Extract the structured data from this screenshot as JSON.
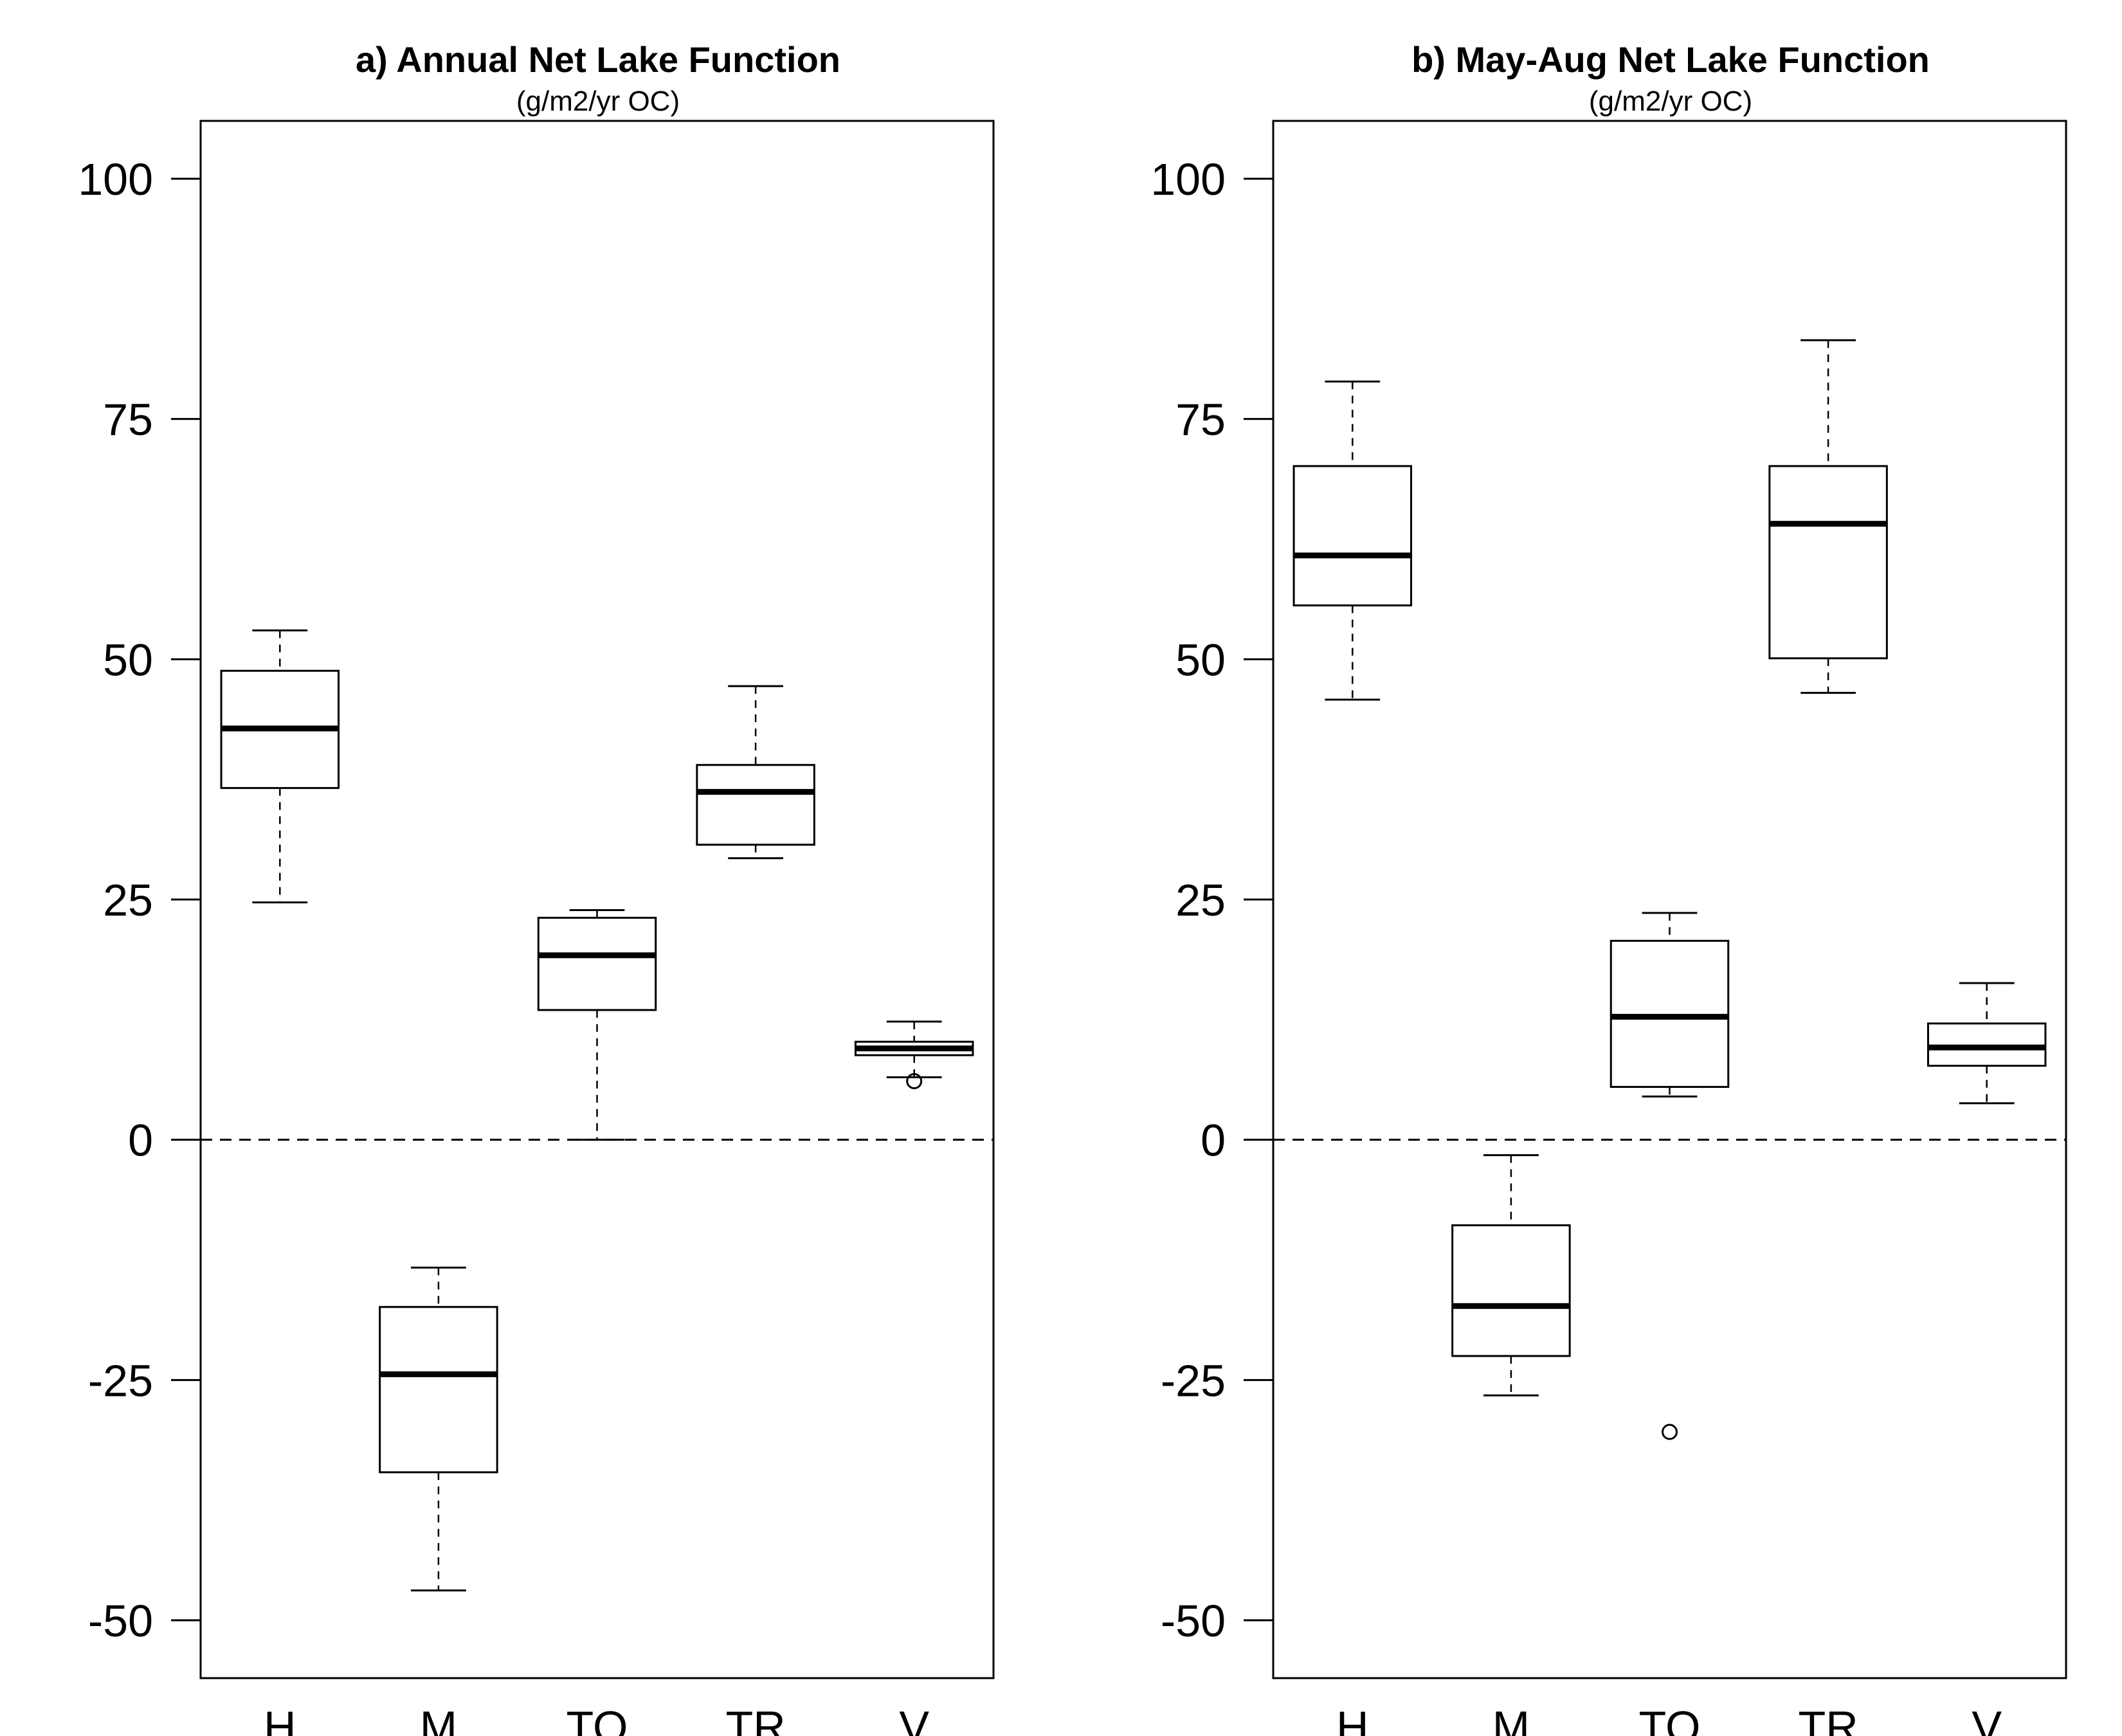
{
  "chart_data": [
    {
      "type": "box",
      "title": "a) Annual Net Lake Function",
      "subtitle": "(g/m2/yr OC)",
      "xlabel": "",
      "ylabel": "",
      "ylim": [
        -56,
        106
      ],
      "yticks": [
        100,
        75,
        50,
        25,
        0,
        -25,
        -50
      ],
      "ytick_labels": [
        "100",
        "75",
        "50",
        "25",
        "0",
        "-25",
        "-50"
      ],
      "reference_line": {
        "y": 0,
        "style": "dashed"
      },
      "grid": false,
      "categories": [
        "H",
        "M",
        "TO",
        "TR",
        "V"
      ],
      "boxes": [
        {
          "category": "H",
          "whisker_low": 24.7,
          "q1": 36.6,
          "median": 42.8,
          "q3": 48.8,
          "whisker_high": 53.0,
          "outliers": []
        },
        {
          "category": "M",
          "whisker_low": -46.9,
          "q1": -34.6,
          "median": -24.4,
          "q3": -17.4,
          "whisker_high": -13.3,
          "outliers": []
        },
        {
          "category": "TO",
          "whisker_low": 0.0,
          "q1": 13.5,
          "median": 19.2,
          "q3": 23.1,
          "whisker_high": 23.9,
          "outliers": []
        },
        {
          "category": "TR",
          "whisker_low": 29.3,
          "q1": 30.7,
          "median": 36.2,
          "q3": 39.0,
          "whisker_high": 47.2,
          "outliers": []
        },
        {
          "category": "V",
          "whisker_low": 6.5,
          "q1": 8.8,
          "median": 9.5,
          "q3": 10.2,
          "whisker_high": 12.3,
          "outliers": [
            6.1
          ]
        }
      ]
    },
    {
      "type": "box",
      "title": "b) May-Aug Net Lake Function",
      "subtitle": "(g/m2/yr OC)",
      "xlabel": "",
      "ylabel": "",
      "ylim": [
        -56,
        106
      ],
      "yticks": [
        100,
        75,
        50,
        25,
        0,
        -25,
        -50
      ],
      "ytick_labels": [
        "100",
        "75",
        "50",
        "25",
        "0",
        "-25",
        "-50"
      ],
      "reference_line": {
        "y": 0,
        "style": "dashed"
      },
      "grid": false,
      "categories": [
        "H",
        "M",
        "TO",
        "TR",
        "V"
      ],
      "boxes": [
        {
          "category": "H",
          "whisker_low": 45.8,
          "q1": 55.6,
          "median": 60.8,
          "q3": 70.1,
          "whisker_high": 78.9,
          "outliers": []
        },
        {
          "category": "M",
          "whisker_low": -26.6,
          "q1": -22.5,
          "median": -17.3,
          "q3": -8.9,
          "whisker_high": -1.6,
          "outliers": []
        },
        {
          "category": "TO",
          "whisker_low": 4.5,
          "q1": 5.5,
          "median": 12.8,
          "q3": 20.7,
          "whisker_high": 23.6,
          "outliers": [
            -30.4
          ]
        },
        {
          "category": "TR",
          "whisker_low": 46.5,
          "q1": 50.1,
          "median": 64.1,
          "q3": 70.1,
          "whisker_high": 83.2,
          "outliers": []
        },
        {
          "category": "V",
          "whisker_low": 3.8,
          "q1": 7.7,
          "median": 9.6,
          "q3": 12.1,
          "whisker_high": 16.3,
          "outliers": []
        }
      ]
    }
  ]
}
